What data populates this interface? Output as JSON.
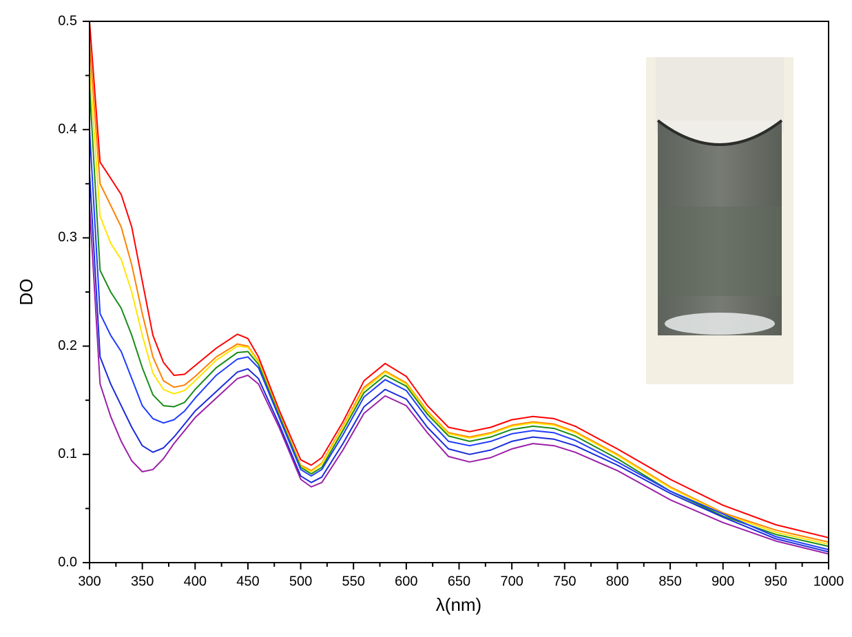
{
  "chart_data": {
    "type": "line",
    "xlabel": "λ(nm)",
    "ylabel": "DO",
    "xlim": [
      300,
      1000
    ],
    "ylim": [
      0,
      0.5
    ],
    "xticks": [
      300,
      350,
      400,
      450,
      500,
      550,
      600,
      650,
      700,
      750,
      800,
      850,
      900,
      950,
      1000
    ],
    "yticks": [
      {
        "value": 0,
        "label": "0.0"
      },
      0.1,
      0.2,
      0.3,
      0.4,
      0.5
    ],
    "x": [
      300,
      310,
      320,
      330,
      340,
      350,
      360,
      370,
      380,
      390,
      400,
      420,
      440,
      450,
      460,
      480,
      500,
      510,
      520,
      540,
      560,
      580,
      600,
      620,
      640,
      660,
      680,
      700,
      720,
      740,
      760,
      800,
      850,
      900,
      950,
      1000
    ],
    "series": [
      {
        "color": "#ff0000",
        "values": [
          0.5,
          0.37,
          0.355,
          0.34,
          0.31,
          0.26,
          0.21,
          0.185,
          0.173,
          0.174,
          0.182,
          0.198,
          0.211,
          0.207,
          0.19,
          0.14,
          0.095,
          0.09,
          0.097,
          0.13,
          0.168,
          0.184,
          0.172,
          0.145,
          0.125,
          0.121,
          0.125,
          0.132,
          0.135,
          0.133,
          0.126,
          0.105,
          0.077,
          0.053,
          0.035,
          0.023
        ]
      },
      {
        "color": "#ff8000",
        "values": [
          0.48,
          0.35,
          0.33,
          0.31,
          0.275,
          0.23,
          0.19,
          0.168,
          0.162,
          0.164,
          0.172,
          0.19,
          0.202,
          0.2,
          0.186,
          0.137,
          0.09,
          0.085,
          0.092,
          0.126,
          0.162,
          0.177,
          0.166,
          0.14,
          0.12,
          0.116,
          0.12,
          0.127,
          0.13,
          0.128,
          0.121,
          0.1,
          0.07,
          0.046,
          0.03,
          0.019
        ]
      },
      {
        "color": "#ffe600",
        "values": [
          0.46,
          0.32,
          0.295,
          0.28,
          0.25,
          0.21,
          0.175,
          0.16,
          0.156,
          0.159,
          0.168,
          0.187,
          0.2,
          0.199,
          0.185,
          0.136,
          0.089,
          0.084,
          0.091,
          0.125,
          0.16,
          0.176,
          0.165,
          0.139,
          0.119,
          0.115,
          0.119,
          0.126,
          0.129,
          0.127,
          0.12,
          0.099,
          0.069,
          0.045,
          0.028,
          0.017
        ]
      },
      {
        "color": "#1a8c1a",
        "values": [
          0.44,
          0.27,
          0.25,
          0.235,
          0.21,
          0.18,
          0.155,
          0.145,
          0.144,
          0.148,
          0.16,
          0.18,
          0.194,
          0.195,
          0.183,
          0.135,
          0.088,
          0.082,
          0.088,
          0.122,
          0.157,
          0.173,
          0.163,
          0.137,
          0.117,
          0.112,
          0.116,
          0.123,
          0.126,
          0.124,
          0.117,
          0.096,
          0.066,
          0.043,
          0.026,
          0.015
        ]
      },
      {
        "color": "#1f3cff",
        "values": [
          0.4,
          0.23,
          0.21,
          0.195,
          0.17,
          0.145,
          0.133,
          0.129,
          0.132,
          0.14,
          0.152,
          0.173,
          0.188,
          0.19,
          0.18,
          0.133,
          0.086,
          0.08,
          0.086,
          0.118,
          0.153,
          0.169,
          0.159,
          0.133,
          0.112,
          0.108,
          0.112,
          0.119,
          0.122,
          0.12,
          0.113,
          0.093,
          0.066,
          0.045,
          0.024,
          0.012
        ]
      },
      {
        "color": "#1a2bd9",
        "values": [
          0.36,
          0.19,
          0.165,
          0.145,
          0.125,
          0.108,
          0.102,
          0.106,
          0.116,
          0.128,
          0.14,
          0.158,
          0.176,
          0.179,
          0.17,
          0.127,
          0.08,
          0.074,
          0.079,
          0.11,
          0.144,
          0.16,
          0.151,
          0.125,
          0.105,
          0.1,
          0.104,
          0.112,
          0.116,
          0.114,
          0.108,
          0.09,
          0.064,
          0.042,
          0.022,
          0.01
        ]
      },
      {
        "color": "#9b1fa8",
        "values": [
          0.33,
          0.165,
          0.135,
          0.112,
          0.094,
          0.084,
          0.086,
          0.096,
          0.11,
          0.122,
          0.134,
          0.152,
          0.17,
          0.173,
          0.165,
          0.124,
          0.077,
          0.07,
          0.074,
          0.104,
          0.138,
          0.154,
          0.145,
          0.12,
          0.098,
          0.093,
          0.097,
          0.105,
          0.11,
          0.108,
          0.102,
          0.085,
          0.058,
          0.037,
          0.02,
          0.008
        ]
      }
    ]
  }
}
